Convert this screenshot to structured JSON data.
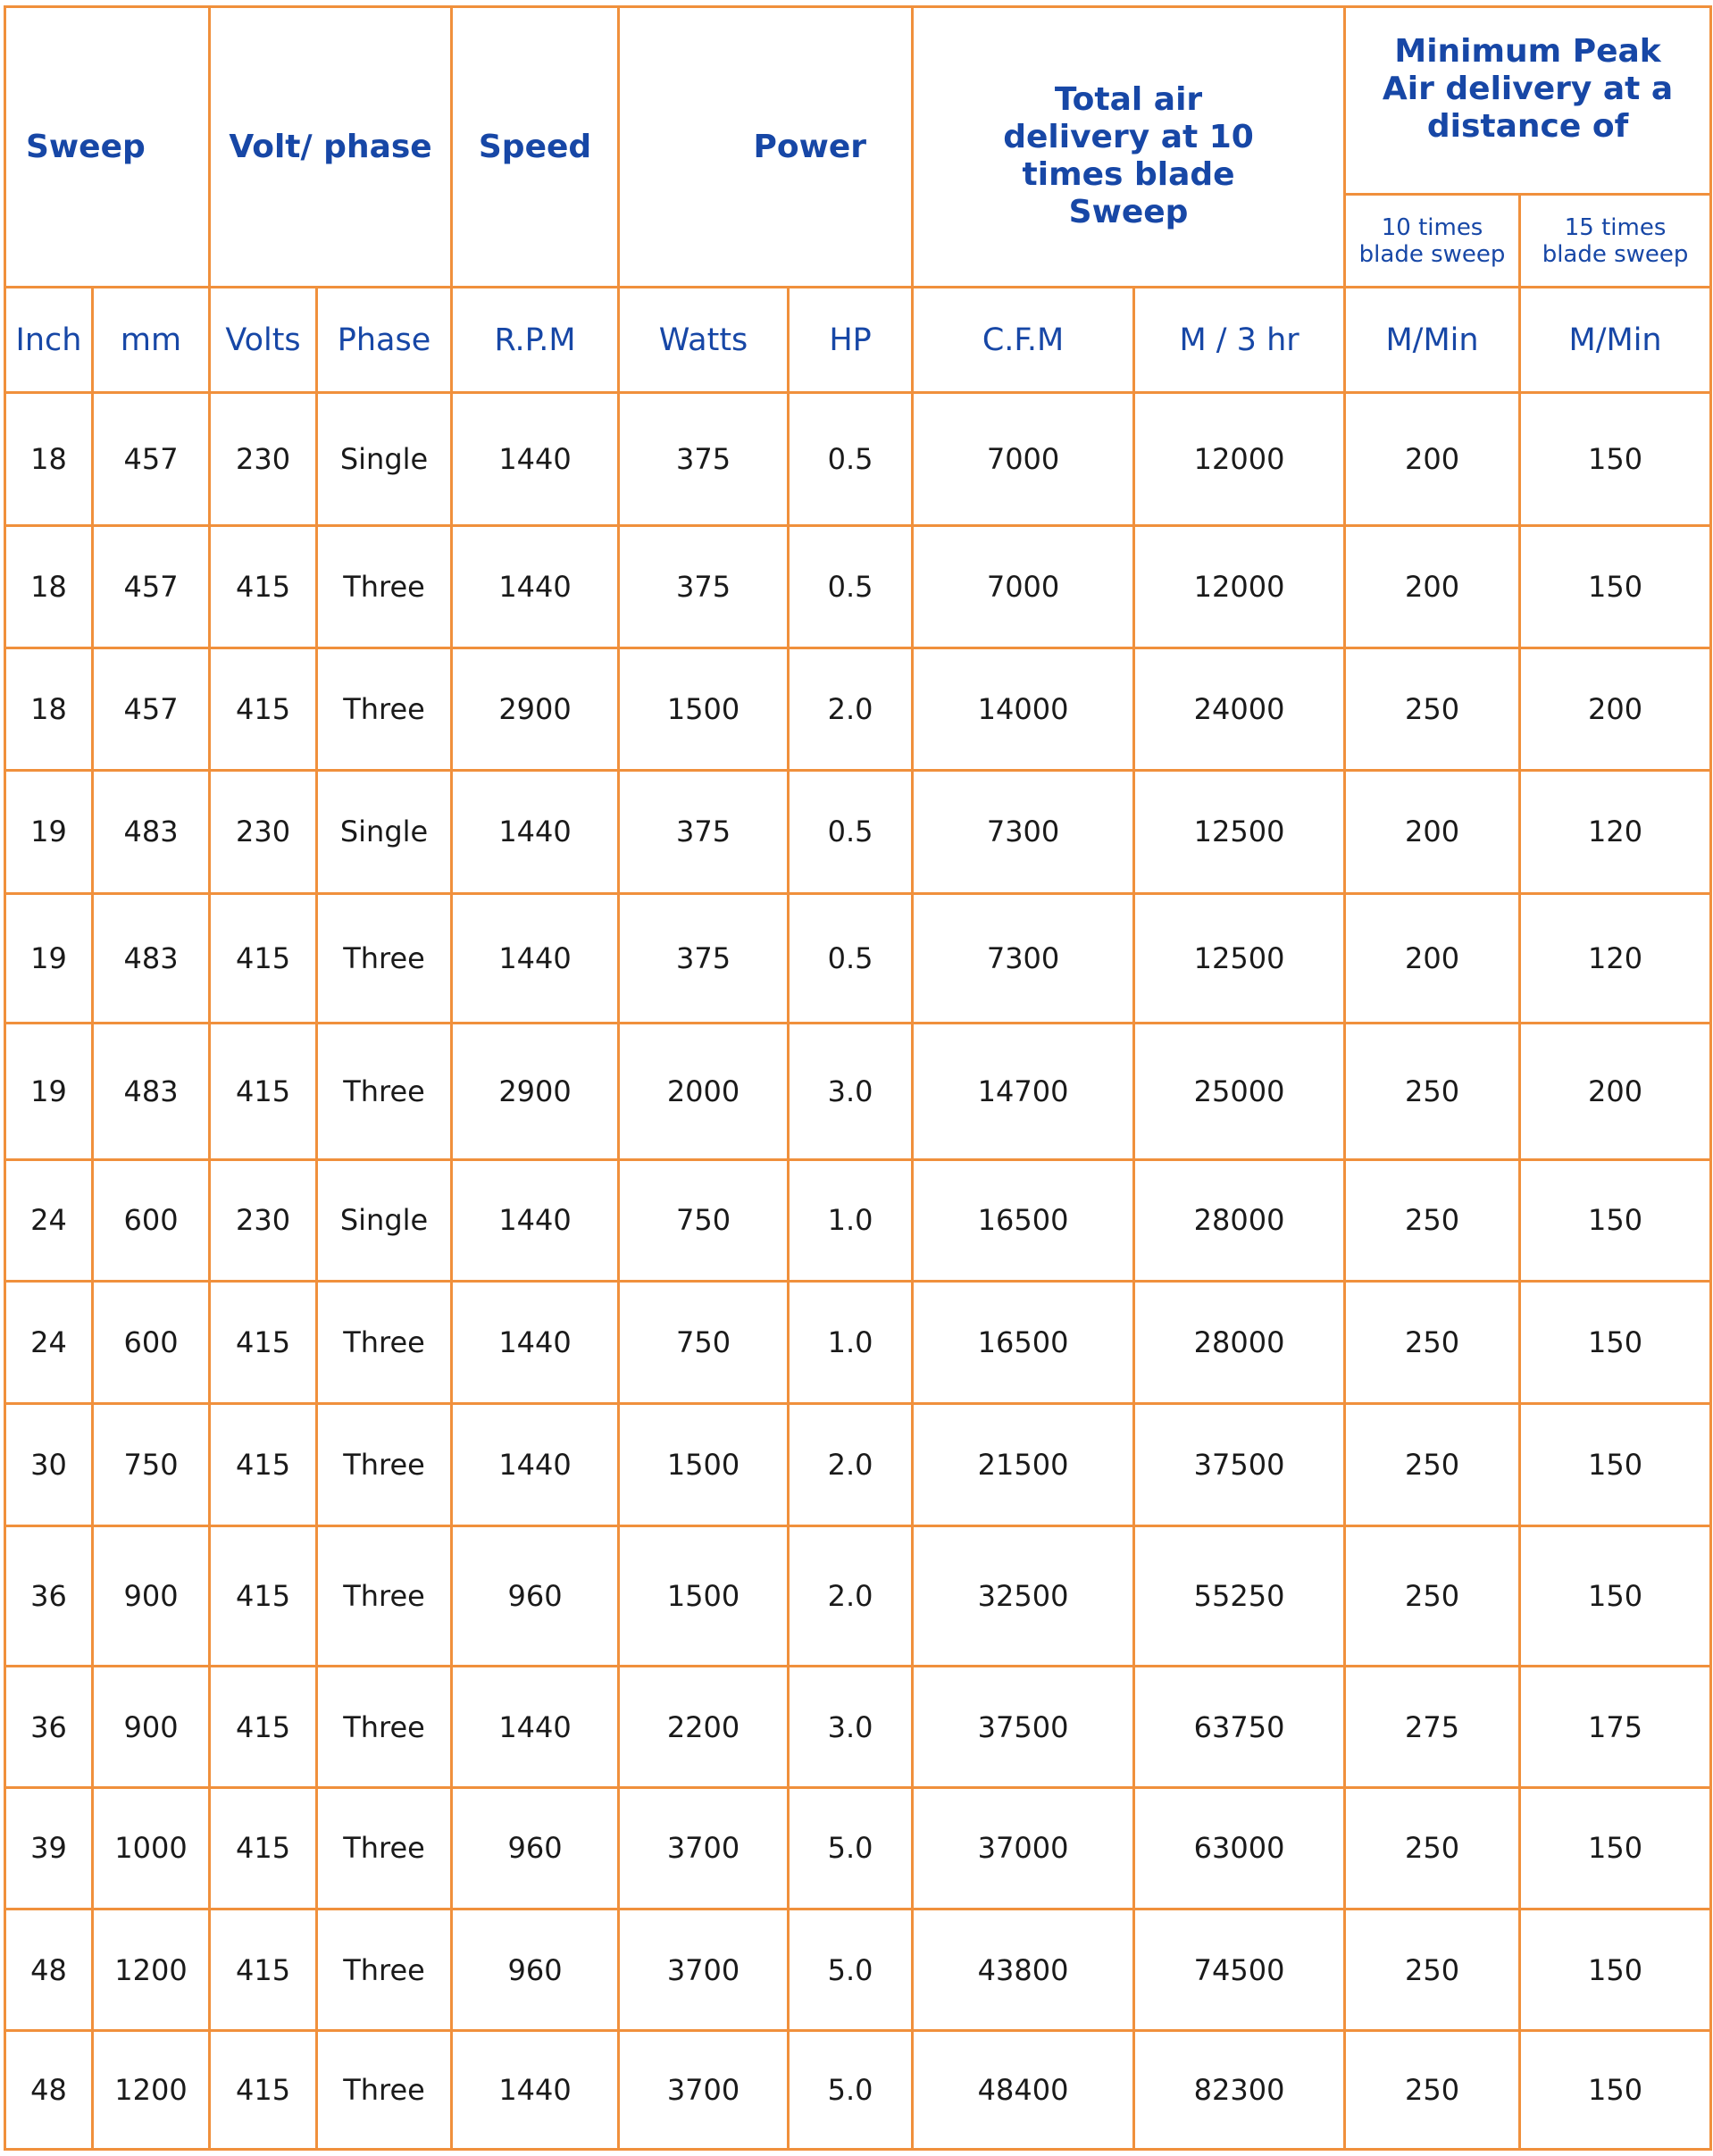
{
  "headers": {
    "sweep": "Sweep",
    "volt_phase": "Volt/ phase",
    "speed": "Speed",
    "power": "Power",
    "total_air_delivery": "Total air delivery at 10 times blade Sweep",
    "min_peak_line1": "Minimum Peak",
    "min_peak_line2": "Air delivery at a",
    "min_peak_line3": "distance of",
    "ten_times_line1": "10 times",
    "ten_times_line2": "blade sweep",
    "fifteen_times_line1": "15 times",
    "fifteen_times_line2": "blade sweep"
  },
  "units": [
    "Inch",
    "mm",
    "Volts",
    "Phase",
    "R.P.M",
    "Watts",
    "HP",
    "C.F.M",
    "M / 3 hr",
    "M/Min",
    "M/Min"
  ],
  "rows": [
    [
      "18",
      "457",
      "230",
      "Single",
      "1440",
      "375",
      "0.5",
      "7000",
      "12000",
      "200",
      "150"
    ],
    [
      "18",
      "457",
      "415",
      "Three",
      "1440",
      "375",
      "0.5",
      "7000",
      "12000",
      "200",
      "150"
    ],
    [
      "18",
      "457",
      "415",
      "Three",
      "2900",
      "1500",
      "2.0",
      "14000",
      "24000",
      "250",
      "200"
    ],
    [
      "19",
      "483",
      "230",
      "Single",
      "1440",
      "375",
      "0.5",
      "7300",
      "12500",
      "200",
      "120"
    ],
    [
      "19",
      "483",
      "415",
      "Three",
      "1440",
      "375",
      "0.5",
      "7300",
      "12500",
      "200",
      "120"
    ],
    [
      "19",
      "483",
      "415",
      "Three",
      "2900",
      "2000",
      "3.0",
      "14700",
      "25000",
      "250",
      "200"
    ],
    [
      "24",
      "600",
      "230",
      "Single",
      "1440",
      "750",
      "1.0",
      "16500",
      "28000",
      "250",
      "150"
    ],
    [
      "24",
      "600",
      "415",
      "Three",
      "1440",
      "750",
      "1.0",
      "16500",
      "28000",
      "250",
      "150"
    ],
    [
      "30",
      "750",
      "415",
      "Three",
      "1440",
      "1500",
      "2.0",
      "21500",
      "37500",
      "250",
      "150"
    ],
    [
      "36",
      "900",
      "415",
      "Three",
      "960",
      "1500",
      "2.0",
      "32500",
      "55250",
      "250",
      "150"
    ],
    [
      "36",
      "900",
      "415",
      "Three",
      "1440",
      "2200",
      "3.0",
      "37500",
      "63750",
      "275",
      "175"
    ],
    [
      "39",
      "1000",
      "415",
      "Three",
      "960",
      "3700",
      "5.0",
      "37000",
      "63000",
      "250",
      "150"
    ],
    [
      "48",
      "1200",
      "415",
      "Three",
      "960",
      "3700",
      "5.0",
      "43800",
      "74500",
      "250",
      "150"
    ],
    [
      "48",
      "1200",
      "415",
      "Three",
      "1440",
      "3700",
      "5.0",
      "48400",
      "82300",
      "250",
      "150"
    ]
  ]
}
